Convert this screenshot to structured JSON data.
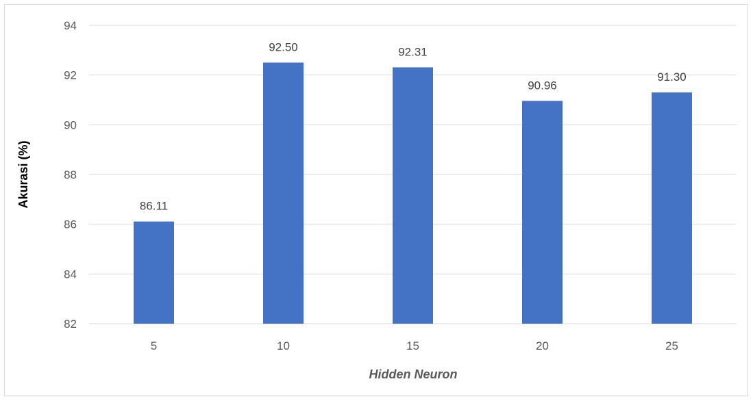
{
  "chart_data": {
    "type": "bar",
    "categories": [
      "5",
      "10",
      "15",
      "20",
      "25"
    ],
    "values": [
      86.11,
      92.5,
      92.31,
      90.96,
      91.3
    ],
    "data_labels": [
      "86.11",
      "92.50",
      "92.31",
      "90.96",
      "91.30"
    ],
    "xlabel": "Hidden Neuron",
    "ylabel": "Akurasi (%)",
    "ylim": [
      82,
      94
    ],
    "yticks": [
      82,
      84,
      86,
      88,
      90,
      92,
      94
    ],
    "grid": true,
    "bar_color": "#4472c4",
    "grid_color": "#d9d9d9"
  }
}
